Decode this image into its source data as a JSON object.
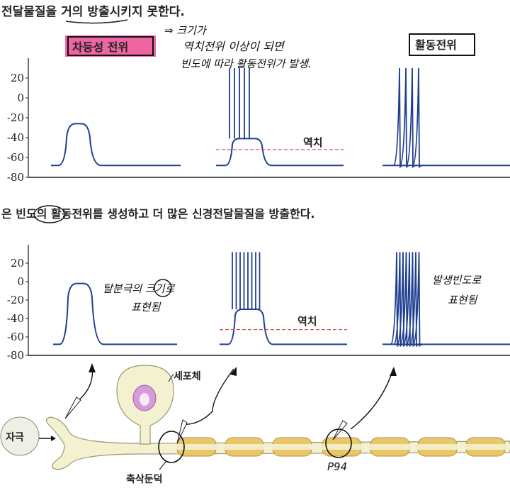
{
  "text": {
    "top_sentence": "전달물질을 거의 방출시키지 못한다.",
    "middle_sentence": "은 빈도의 활동전위를 생성하고 더 많은 신경전달물질을 방출한다.",
    "graded_label": "차등성 전위",
    "action_label": "활동전위",
    "note_top_1": "⇒ 크기가",
    "note_top_2": "역치전위 이상이 되면",
    "note_top_3": "빈도에 따라  활동전위가 발생.",
    "threshold_top": "역치",
    "threshold_bottom": "역치",
    "note_mid_left": "탈분극의 크기로",
    "note_mid_left_2": "표현됨",
    "note_mid_right": "발생빈도로",
    "note_mid_right_2": "표현됨",
    "cell_body": "세포체",
    "stimulus": "자극",
    "axon_hillock": "축삭둔덕",
    "page_ref": "P94"
  },
  "axis_ticks": [
    "20",
    "0",
    "-20",
    "-40",
    "-60",
    "-80"
  ],
  "colors": {
    "trace": "#1f3f8f",
    "threshold": "#d9534f",
    "highlight": "#e8408a",
    "neuron": "#f3f1cf",
    "myelin": "#eac66a",
    "nucleus": "#d79ad8"
  }
}
